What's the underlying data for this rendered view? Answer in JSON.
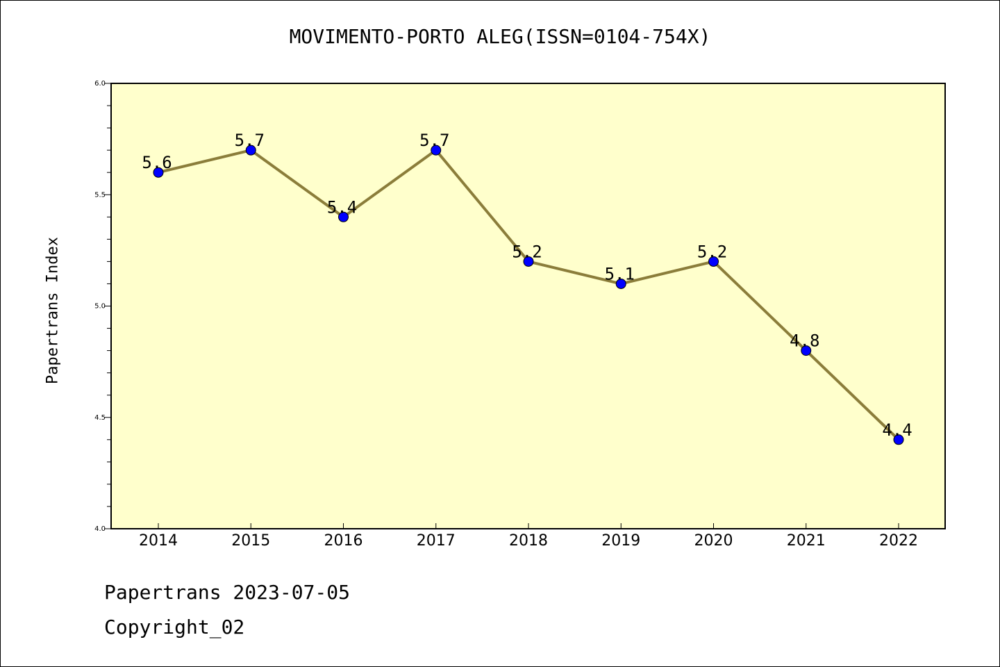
{
  "chart_data": {
    "type": "line",
    "title": "MOVIMENTO-PORTO ALEG(ISSN=0104-754X)",
    "xlabel": "",
    "ylabel": "Papertrans Index",
    "x": [
      "2014",
      "2015",
      "2016",
      "2017",
      "2018",
      "2019",
      "2020",
      "2021",
      "2022"
    ],
    "series": [
      {
        "values": [
          5.6,
          5.7,
          5.4,
          5.7,
          5.2,
          5.1,
          5.2,
          4.8,
          4.4
        ]
      }
    ],
    "data_labels": [
      "5.6",
      "5.7",
      "5.4",
      "5.7",
      "5.2",
      "5.1",
      "5.2",
      "4.8",
      "4.4"
    ],
    "ylim": [
      4.0,
      6.0
    ],
    "yticks": [
      "4.0",
      "4.5",
      "5.0",
      "5.5",
      "6.0"
    ],
    "grid": false,
    "legend": "none",
    "colors": {
      "plot_background": "#ffffcc",
      "line": "#8b7d3a",
      "marker": "#0000ff"
    }
  },
  "footer": {
    "date_text": "Papertrans 2023-07-05",
    "copyright_text": "Copyright_02"
  }
}
